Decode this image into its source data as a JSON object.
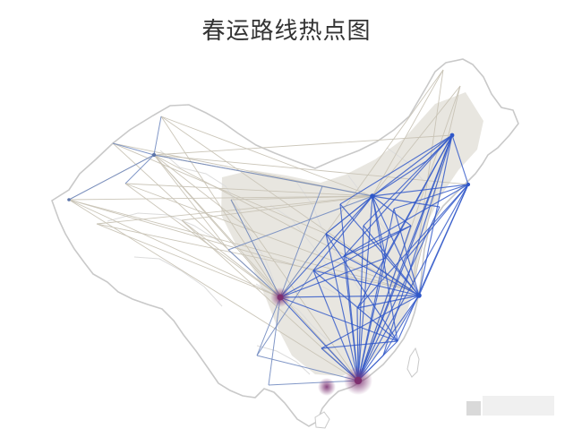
{
  "title": "春运路线热点图",
  "colors": {
    "background": "#ffffff",
    "china_fill": "#ffffff",
    "china_outline": "#c9c9c9",
    "province_border": "#dcdcdc",
    "land_shade": "#d6d2c7",
    "route_cold": "#c8c3b5",
    "route_mid": "#6f89bf",
    "route_hot": "#2f57c8",
    "hub_hot": "#8a2f6e",
    "title_text": "#333333"
  },
  "legend": {}
}
